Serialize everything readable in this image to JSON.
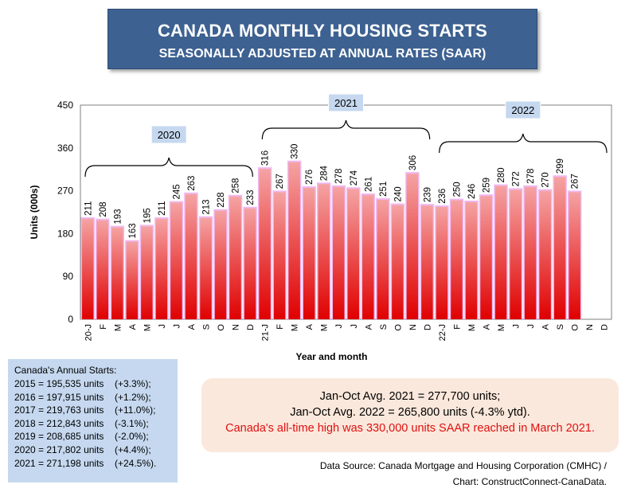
{
  "header": {
    "title": "CANADA MONTHLY HOUSING STARTS",
    "subtitle": "SEASONALLY ADJUSTED AT ANNUAL RATES (SAAR)"
  },
  "chart_data": {
    "type": "bar",
    "ylabel": "Units (000s)",
    "xlabel": "Year and month",
    "ylim": [
      0,
      450
    ],
    "yticks": [
      0,
      90,
      180,
      270,
      360,
      450
    ],
    "categories": [
      "20-J",
      "F",
      "M",
      "A",
      "M",
      "J",
      "J",
      "A",
      "S",
      "O",
      "N",
      "D",
      "21-J",
      "F",
      "M",
      "A",
      "M",
      "J",
      "J",
      "A",
      "S",
      "O",
      "N",
      "D",
      "22-J",
      "F",
      "M",
      "A",
      "M",
      "J",
      "J",
      "A",
      "S",
      "O",
      "N",
      "D"
    ],
    "values": [
      211,
      208,
      193,
      163,
      195,
      211,
      245,
      263,
      213,
      228,
      258,
      233,
      316,
      267,
      330,
      276,
      284,
      278,
      274,
      261,
      251,
      240,
      306,
      239,
      236,
      250,
      246,
      259,
      280,
      272,
      278,
      270,
      299,
      267,
      null,
      null
    ],
    "year_groups": [
      {
        "label": "2020",
        "start": 0,
        "end": 11
      },
      {
        "label": "2021",
        "start": 12,
        "end": 23
      },
      {
        "label": "2022",
        "start": 24,
        "end": 35
      }
    ],
    "colors": {
      "bar_top": "#f5a3a3",
      "bar_bottom": "#e00000",
      "bar_cap": "#f0b8f0",
      "plot_border": "#7f7f7f"
    },
    "grid": false
  },
  "annual": {
    "heading": "Canada's Annual Starts:",
    "rows": [
      {
        "value": "2015 = 195,535 units",
        "change": "(+3.3%);"
      },
      {
        "value": "2016 = 197,915 units",
        "change": "(+1.2%);"
      },
      {
        "value": "2017 = 219,763 units",
        "change": "(+11.0%);"
      },
      {
        "value": "2018 = 212,843 units",
        "change": "(-3.1%);"
      },
      {
        "value": "2019 = 208,685 units",
        "change": "(-2.0%);"
      },
      {
        "value": "2020 = 217,802 units",
        "change": "(+4.4%);"
      },
      {
        "value": "2021 = 271,198 units",
        "change": "(+24.5%)."
      }
    ]
  },
  "averages": {
    "line1": "Jan-Oct Avg. 2021 = 277,700 units;",
    "line2": "Jan-Oct Avg. 2022 = 265,800 units (-4.3% ytd).",
    "line3": "Canada's all-time high was 330,000 units SAAR reached in March 2021."
  },
  "source": {
    "line1": "Data Source:  Canada Mortgage and Housing Corporation (CMHC) /",
    "line2": "Chart: ConstructConnect-CanaData."
  }
}
